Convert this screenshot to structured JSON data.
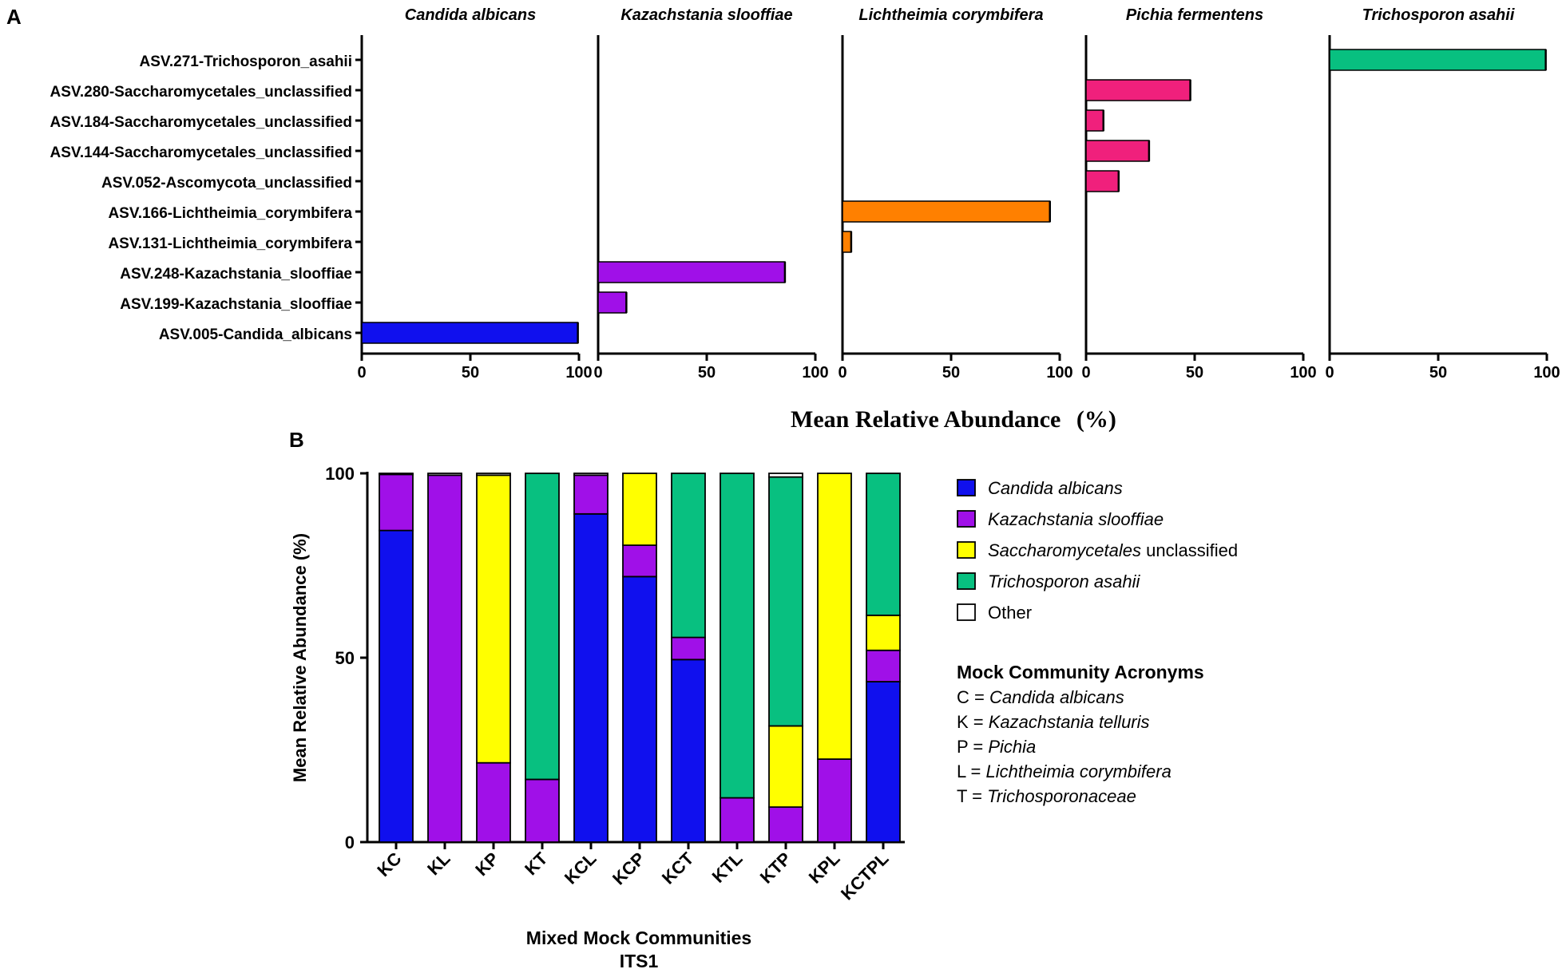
{
  "panel_a": {
    "label": "A",
    "shared_xlabel": "Mean Relative Abundance",
    "shared_xlabel_unit": "(%)"
  },
  "panel_b": {
    "label": "B",
    "legend_title": "Mock Community Acronyms",
    "acronyms": [
      {
        "code": "C = ",
        "name": "Candida albicans"
      },
      {
        "code": "K = ",
        "name": "Kazachstania telluris"
      },
      {
        "code": "P = ",
        "name": "Pichia"
      },
      {
        "code": "L = ",
        "name": "Lichtheimia corymbifera"
      },
      {
        "code": "T = ",
        "name": "Trichosporonaceae"
      }
    ],
    "xlabel_line2": "ITS1"
  },
  "chart_data": [
    {
      "type": "bar",
      "orientation": "horizontal",
      "xlim": [
        0,
        100
      ],
      "xticks": [
        "0",
        "50",
        "100"
      ],
      "categories": [
        "ASV.271-Trichosporon_asahii",
        "ASV.280-Saccharomycetales_unclassified",
        "ASV.184-Saccharomycetales_unclassified",
        "ASV.144-Saccharomycetales_unclassified",
        "ASV.052-Ascomycota_unclassified",
        "ASV.166-Lichtheimia_corymbifera",
        "ASV.131-Lichtheimia_corymbifera",
        "ASV.248-Kazachstania_slooffiae",
        "ASV.199-Kazachstania_slooffiae",
        "ASV.005-Candida_albicans"
      ],
      "xlabel": "Mean Relative Abundance (%)",
      "panels": [
        {
          "title": "Candida albicans",
          "color": "#1010ee",
          "values": [
            0,
            0,
            0,
            0,
            0,
            0,
            0,
            0,
            0,
            99.5
          ]
        },
        {
          "title": "Kazachstania slooffiae",
          "color": "#a010e8",
          "values": [
            0,
            0,
            0,
            0,
            0,
            0,
            0,
            86,
            13,
            0
          ]
        },
        {
          "title": "Lichtheimia corymbifera",
          "color": "#ff8000",
          "values": [
            0,
            0,
            0,
            0,
            0,
            95.5,
            4,
            0,
            0,
            0
          ]
        },
        {
          "title": "Pichia fermentens",
          "color": "#f0207c",
          "values": [
            0,
            48,
            8,
            29,
            15,
            0,
            0,
            0,
            0,
            0
          ]
        },
        {
          "title": "Trichosporon asahii",
          "color": "#08c080",
          "values": [
            99.5,
            0,
            0,
            0,
            0,
            0,
            0,
            0,
            0,
            0
          ]
        }
      ]
    },
    {
      "type": "bar",
      "stacked": true,
      "categories": [
        "KC",
        "KL",
        "KP",
        "KT",
        "KCL",
        "KCP",
        "KCT",
        "KTL",
        "KTP",
        "KPL",
        "KCTPL"
      ],
      "ylim": [
        0,
        100
      ],
      "yticks": [
        "0",
        "50",
        "100"
      ],
      "ylabel": "Mean Relative Abundance (%)",
      "xlabel": "Mixed Mock Communities",
      "series": [
        {
          "name": "Candida albicans",
          "italic": true,
          "suffix": "",
          "color": "#1010ee",
          "values": [
            84.5,
            0,
            0,
            0,
            89,
            72,
            49.5,
            0,
            0,
            0,
            43.5
          ]
        },
        {
          "name": "Kazachstania slooffiae",
          "italic": true,
          "suffix": "",
          "color": "#a010e8",
          "values": [
            15.2,
            99.5,
            21.5,
            17,
            10.5,
            8.5,
            6,
            12,
            9.5,
            22.5,
            8.5
          ]
        },
        {
          "name": "Saccharomycetales",
          "italic": true,
          "suffix": " unclassified",
          "color": "#ffff00",
          "values": [
            0,
            0,
            78,
            0,
            0,
            19.5,
            0,
            0,
            22,
            77.5,
            9.5
          ]
        },
        {
          "name": "Trichosporon asahii",
          "italic": true,
          "suffix": "",
          "color": "#08c080",
          "values": [
            0,
            0,
            0,
            83,
            0,
            0,
            44.5,
            88,
            67.5,
            0,
            38.5
          ]
        },
        {
          "name": "Other",
          "italic": false,
          "suffix": "",
          "color": "#ffffff",
          "values": [
            0.3,
            0.5,
            0.5,
            0,
            0.5,
            0,
            0,
            0,
            1.0,
            0,
            0
          ]
        }
      ]
    }
  ]
}
